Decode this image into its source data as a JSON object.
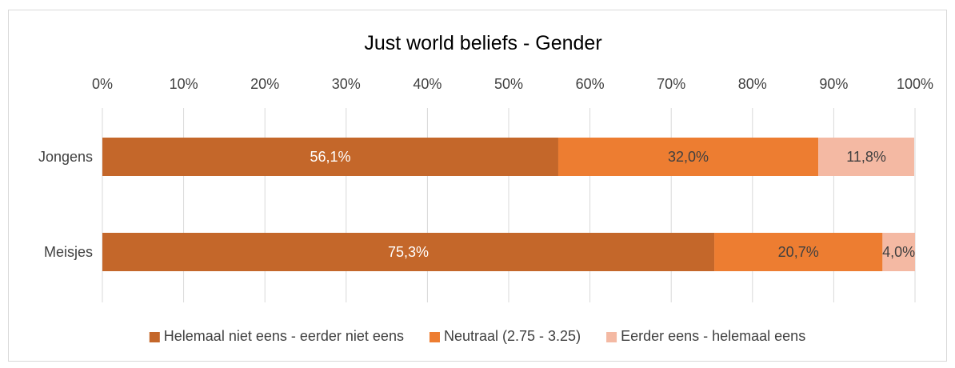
{
  "chart_data": {
    "type": "bar",
    "orientation": "horizontal",
    "stacked": "percent",
    "title": "Just world beliefs - Gender",
    "categories": [
      "Jongens",
      "Meisjes"
    ],
    "series": [
      {
        "name": "Helemaal niet eens - eerder niet eens",
        "values": [
          56.1,
          75.3
        ],
        "labels": [
          "56,1%",
          "75,3%"
        ],
        "color": "#c4672a",
        "label_color": "#ffffff"
      },
      {
        "name": "Neutraal (2.75 - 3.25)",
        "values": [
          32.0,
          20.7
        ],
        "labels": [
          "32,0%",
          "20,7%"
        ],
        "color": "#ed7d31",
        "label_color": "#404040"
      },
      {
        "name": "Eerder eens - helemaal eens",
        "values": [
          11.8,
          4.0
        ],
        "labels": [
          "11,8%",
          "4,0%"
        ],
        "color": "#f4b9a3",
        "label_color": "#404040"
      }
    ],
    "xlim": [
      0,
      100
    ],
    "x_ticks": [
      "0%",
      "10%",
      "20%",
      "30%",
      "40%",
      "50%",
      "60%",
      "70%",
      "80%",
      "90%",
      "100%"
    ],
    "axis_position": "top",
    "grid": true,
    "legend": "bottom"
  }
}
